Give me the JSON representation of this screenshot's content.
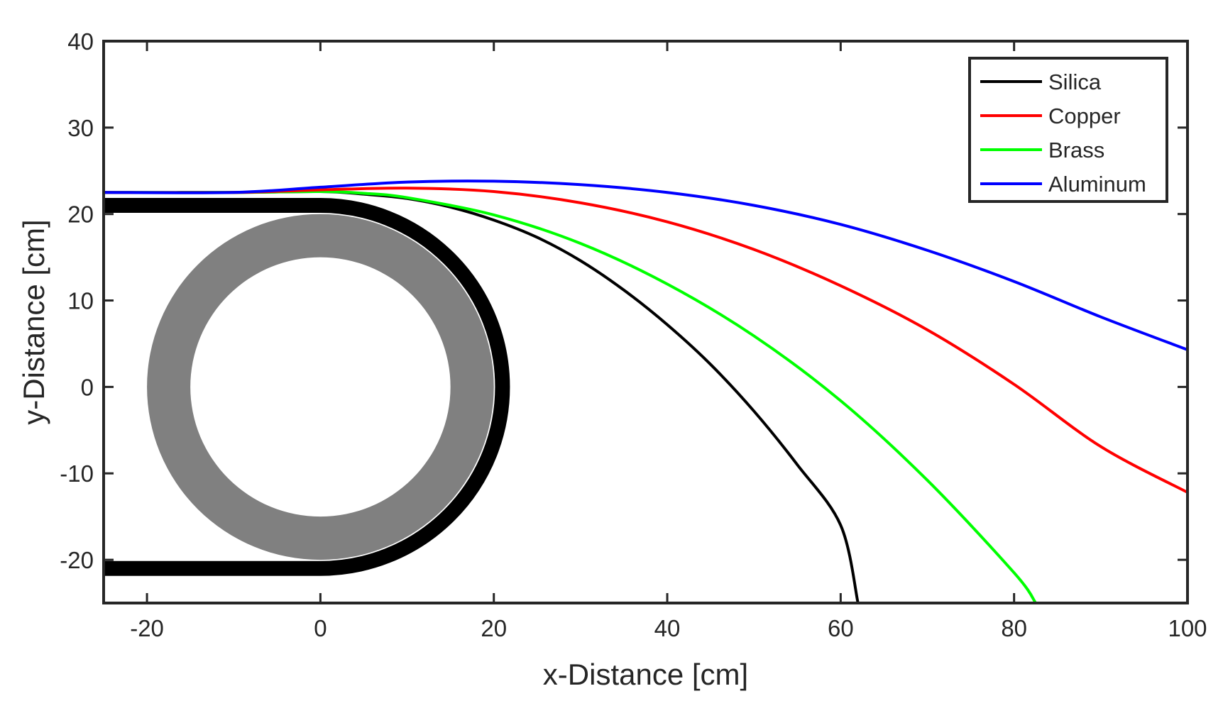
{
  "chart_data": {
    "type": "line",
    "title": "",
    "xlabel": "x-Distance [cm]",
    "ylabel": "y-Distance [cm]",
    "xlim": [
      -25,
      100
    ],
    "ylim": [
      -25,
      40
    ],
    "xticks": [
      -20,
      0,
      20,
      40,
      60,
      80,
      100
    ],
    "yticks": [
      -20,
      -10,
      0,
      10,
      20,
      30,
      40
    ],
    "xtick_labels": [
      "-20",
      "0",
      "20",
      "40",
      "60",
      "80",
      "100"
    ],
    "ytick_labels": [
      "-20",
      "-10",
      "0",
      "10",
      "20",
      "30",
      "40"
    ],
    "grid": false,
    "legend_position": "top-right",
    "shapes": {
      "gray_ring": {
        "center": [
          0,
          0
        ],
        "outer_radius": 20,
        "inner_radius": 15,
        "color": "#808080"
      },
      "black_track": {
        "half_height": 21,
        "right_arc_radius": 21,
        "left_x": -25,
        "straight_end_x": 0,
        "color": "#000000"
      }
    },
    "series": [
      {
        "name": "Silica",
        "color": "#000000",
        "x": [
          -25,
          -10,
          0,
          5,
          10,
          15,
          20,
          25,
          30,
          35,
          40,
          45,
          50,
          55,
          60,
          62
        ],
        "y": [
          22.5,
          22.5,
          22.6,
          22.3,
          21.8,
          20.8,
          19.3,
          17.3,
          14.6,
          11.2,
          7.2,
          2.6,
          -2.8,
          -9.0,
          -16.0,
          -25.0
        ]
      },
      {
        "name": "Copper",
        "color": "#ff0000",
        "x": [
          -25,
          -10,
          0,
          10,
          20,
          30,
          40,
          50,
          60,
          70,
          80,
          90,
          100
        ],
        "y": [
          22.5,
          22.5,
          22.8,
          23.0,
          22.6,
          21.3,
          19.1,
          15.9,
          11.7,
          6.6,
          0.3,
          -6.9,
          -12.2
        ]
      },
      {
        "name": "Brass",
        "color": "#00ff00",
        "x": [
          -25,
          -10,
          0,
          5,
          10,
          20,
          30,
          40,
          50,
          60,
          70,
          80,
          82.5
        ],
        "y": [
          22.5,
          22.5,
          22.6,
          22.4,
          21.9,
          19.9,
          16.6,
          11.9,
          5.9,
          -1.6,
          -10.8,
          -21.5,
          -25.0
        ]
      },
      {
        "name": "Aluminum",
        "color": "#0000ff",
        "x": [
          -25,
          -10,
          0,
          10,
          20,
          30,
          40,
          50,
          60,
          70,
          80,
          90,
          100
        ],
        "y": [
          22.5,
          22.5,
          23.1,
          23.7,
          23.8,
          23.4,
          22.5,
          21.0,
          18.8,
          15.8,
          12.2,
          8.1,
          4.3
        ]
      }
    ]
  }
}
